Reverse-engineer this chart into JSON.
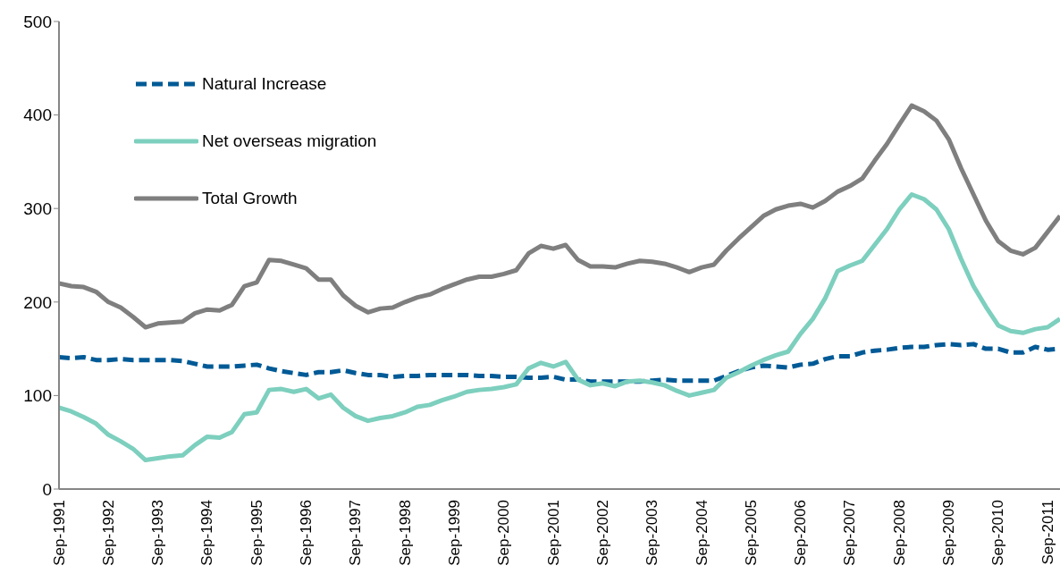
{
  "chart_data": {
    "type": "line",
    "categories": [
      "Sep-1991",
      null,
      null,
      null,
      "Sep-1992",
      null,
      null,
      null,
      "Sep-1993",
      null,
      null,
      null,
      "Sep-1994",
      null,
      null,
      null,
      "Sep-1995",
      null,
      null,
      null,
      "Sep-1996",
      null,
      null,
      null,
      "Sep-1997",
      null,
      null,
      null,
      "Sep-1998",
      null,
      null,
      null,
      "Sep-1999",
      null,
      null,
      null,
      "Sep-2000",
      null,
      null,
      null,
      "Sep-2001",
      null,
      null,
      null,
      "Sep-2002",
      null,
      null,
      null,
      "Sep-2003",
      null,
      null,
      null,
      "Sep-2004",
      null,
      null,
      null,
      "Sep-2005",
      null,
      null,
      null,
      "Sep-2006",
      null,
      null,
      null,
      "Sep-2007",
      null,
      null,
      null,
      "Sep-2008",
      null,
      null,
      null,
      "Sep-2009",
      null,
      null,
      null,
      "Sep-2010",
      null,
      null,
      null,
      "Sep-2011",
      null
    ],
    "series": [
      {
        "name": "Natural Increase",
        "color": "#005a96",
        "line_style": "dashed",
        "values": [
          141,
          140,
          141,
          138,
          138,
          139,
          138,
          138,
          138,
          138,
          137,
          134,
          131,
          131,
          131,
          132,
          133,
          129,
          126,
          124,
          122,
          125,
          125,
          127,
          124,
          122,
          122,
          120,
          121,
          121,
          122,
          122,
          122,
          122,
          121,
          121,
          120,
          120,
          119,
          119,
          120,
          117,
          117,
          115,
          115,
          115,
          115,
          115,
          116,
          117,
          116,
          116,
          116,
          116,
          121,
          126,
          130,
          132,
          131,
          130,
          133,
          134,
          139,
          142,
          142,
          146,
          148,
          149,
          151,
          152,
          152,
          154,
          155,
          154,
          155,
          150,
          150,
          146,
          146,
          152,
          149,
          150
        ]
      },
      {
        "name": "Net overseas migration",
        "color": "#7dcfbe",
        "line_style": "solid",
        "values": [
          87,
          83,
          77,
          70,
          58,
          51,
          43,
          31,
          33,
          35,
          36,
          47,
          56,
          55,
          61,
          80,
          82,
          106,
          107,
          104,
          107,
          97,
          101,
          87,
          78,
          73,
          76,
          78,
          82,
          88,
          90,
          95,
          99,
          104,
          106,
          107,
          109,
          112,
          129,
          135,
          131,
          136,
          117,
          111,
          113,
          110,
          115,
          116,
          114,
          111,
          105,
          100,
          103,
          106,
          119,
          125,
          132,
          138,
          143,
          147,
          166,
          182,
          204,
          233,
          239,
          244,
          261,
          278,
          299,
          315,
          310,
          299,
          278,
          246,
          217,
          195,
          175,
          169,
          167,
          171,
          173,
          182
        ]
      },
      {
        "name": "Total Growth",
        "color": "#7f7f7f",
        "line_style": "solid",
        "values": [
          220,
          217,
          216,
          211,
          200,
          194,
          184,
          173,
          177,
          178,
          179,
          188,
          192,
          191,
          197,
          217,
          221,
          245,
          244,
          240,
          236,
          224,
          224,
          207,
          196,
          189,
          193,
          194,
          200,
          205,
          208,
          214,
          219,
          224,
          227,
          227,
          230,
          234,
          252,
          260,
          257,
          261,
          245,
          238,
          238,
          237,
          241,
          244,
          243,
          241,
          237,
          232,
          237,
          240,
          255,
          268,
          280,
          292,
          299,
          303,
          305,
          301,
          308,
          318,
          324,
          332,
          351,
          369,
          390,
          410,
          404,
          394,
          374,
          343,
          315,
          287,
          265,
          255,
          251,
          258,
          275,
          292
        ]
      }
    ],
    "ylim": [
      0,
      500
    ],
    "yticks": [
      0,
      100,
      200,
      300,
      400,
      500
    ],
    "grid": false,
    "legend": "top left",
    "marker": "none"
  }
}
